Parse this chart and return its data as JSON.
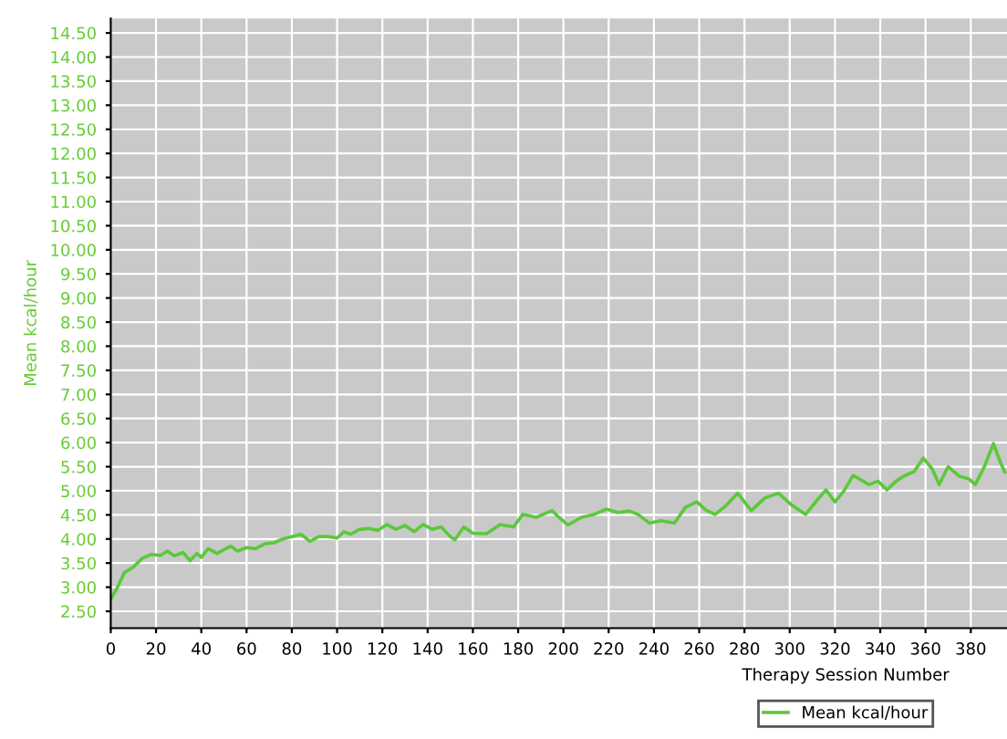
{
  "chart_data": {
    "type": "line",
    "xlabel": "Therapy Session Number",
    "ylabel": "Mean kcal/hour",
    "xlim": [
      0,
      396
    ],
    "xticks": [
      0,
      20,
      40,
      60,
      80,
      100,
      120,
      140,
      160,
      180,
      200,
      220,
      240,
      260,
      280,
      300,
      320,
      340,
      360,
      380
    ],
    "ylim": [
      2.15,
      14.8
    ],
    "yticks": [
      {
        "value": 2.5,
        "label": "2.50"
      },
      {
        "value": 3,
        "label": "3.00"
      },
      {
        "value": 3.5,
        "label": "3.50"
      },
      {
        "value": 4,
        "label": "4.00"
      },
      {
        "value": 4.5,
        "label": "4.50"
      },
      {
        "value": 5,
        "label": "5.00"
      },
      {
        "value": 5.5,
        "label": "5.50"
      },
      {
        "value": 6,
        "label": "6.00"
      },
      {
        "value": 6.5,
        "label": "6.50"
      },
      {
        "value": 7,
        "label": "7.00"
      },
      {
        "value": 7.5,
        "label": "7.50"
      },
      {
        "value": 8,
        "label": "8.00"
      },
      {
        "value": 8.5,
        "label": "8.50"
      },
      {
        "value": 9,
        "label": "9.00"
      },
      {
        "value": 9.5,
        "label": "9.50"
      },
      {
        "value": 10,
        "label": "10.00"
      },
      {
        "value": 10.5,
        "label": "10.50"
      },
      {
        "value": 11,
        "label": "11.00"
      },
      {
        "value": 11.5,
        "label": "11.50"
      },
      {
        "value": 12,
        "label": "12.00"
      },
      {
        "value": 12.5,
        "label": "12.50"
      },
      {
        "value": 13,
        "label": "13.00"
      },
      {
        "value": 13.5,
        "label": "13.50"
      },
      {
        "value": 14,
        "label": "14.00"
      },
      {
        "value": 14.5,
        "label": "14.50"
      }
    ],
    "grid": true,
    "legend": "bottom",
    "series": [
      {
        "name": "Mean kcal/hour",
        "color": "#5cc83c",
        "x": [
          0,
          3,
          6,
          10,
          14,
          18,
          22,
          25,
          28,
          32,
          35,
          38,
          40,
          43,
          47,
          50,
          53,
          56,
          60,
          64,
          68,
          72,
          76,
          80,
          84,
          88,
          92,
          96,
          100,
          103,
          106,
          110,
          114,
          118,
          122,
          126,
          130,
          134,
          138,
          142,
          146,
          150,
          152,
          156,
          160,
          166,
          172,
          178,
          182,
          188,
          195,
          198,
          202,
          208,
          213,
          219,
          224,
          229,
          233,
          238,
          243,
          249,
          254,
          259,
          263,
          267,
          272,
          277,
          283,
          289,
          295,
          301,
          307,
          312,
          316,
          320,
          324,
          328,
          335,
          339,
          343,
          347,
          351,
          355,
          359,
          363,
          366,
          370,
          375,
          379,
          382,
          386,
          390,
          393,
          395
        ],
        "values": [
          2.75,
          3.0,
          3.3,
          3.42,
          3.6,
          3.68,
          3.66,
          3.75,
          3.65,
          3.72,
          3.55,
          3.7,
          3.62,
          3.8,
          3.7,
          3.78,
          3.85,
          3.75,
          3.82,
          3.8,
          3.9,
          3.92,
          4.0,
          4.05,
          4.1,
          3.95,
          4.05,
          4.05,
          4.02,
          4.15,
          4.1,
          4.2,
          4.22,
          4.18,
          4.3,
          4.2,
          4.28,
          4.15,
          4.3,
          4.2,
          4.25,
          4.05,
          3.98,
          4.25,
          4.12,
          4.11,
          4.3,
          4.25,
          4.51,
          4.45,
          4.59,
          4.45,
          4.29,
          4.45,
          4.5,
          4.62,
          4.55,
          4.58,
          4.51,
          4.33,
          4.38,
          4.33,
          4.66,
          4.77,
          4.6,
          4.51,
          4.7,
          4.95,
          4.59,
          4.85,
          4.95,
          4.7,
          4.51,
          4.8,
          5.02,
          4.77,
          5.0,
          5.32,
          5.13,
          5.2,
          5.02,
          5.2,
          5.32,
          5.4,
          5.68,
          5.45,
          5.13,
          5.5,
          5.3,
          5.25,
          5.13,
          5.5,
          5.98,
          5.6,
          5.39
        ]
      }
    ]
  }
}
